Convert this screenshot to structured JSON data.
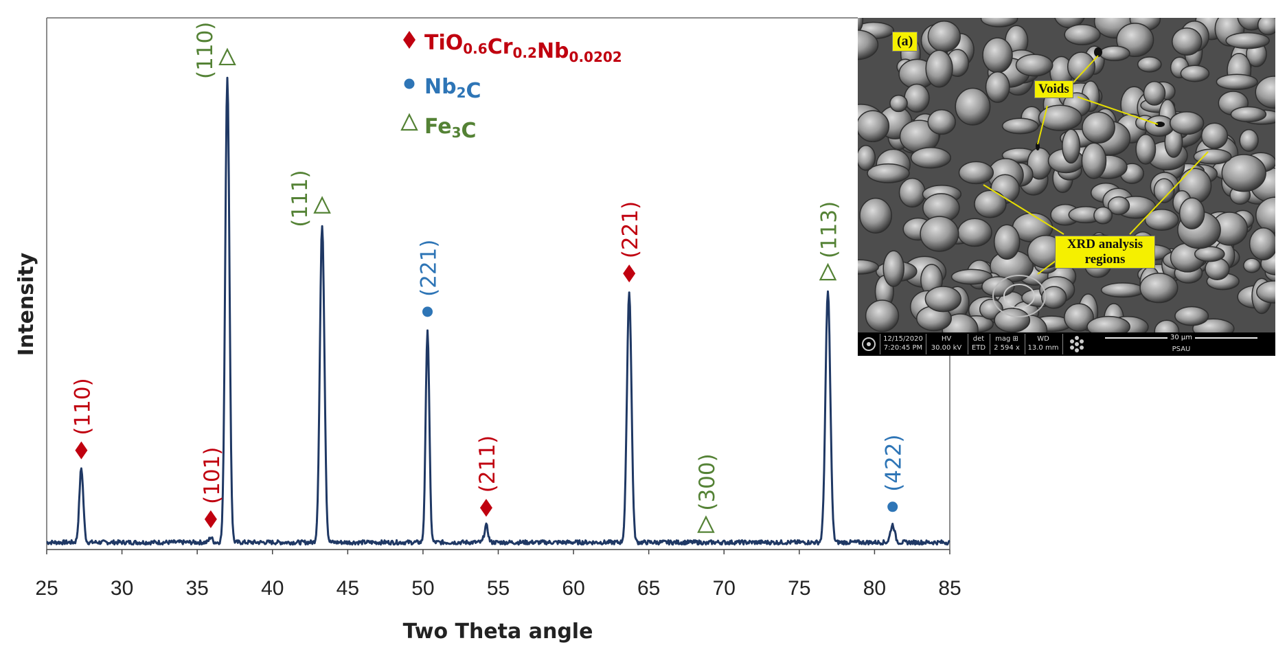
{
  "chart_data": {
    "type": "line",
    "xlabel": "Two Theta angle",
    "ylabel": "Intensity",
    "xlim": [
      25,
      85
    ],
    "ylim": [
      0,
      100
    ],
    "xticks": [
      "25",
      "30",
      "35",
      "40",
      "45",
      "50",
      "55",
      "60",
      "65",
      "70",
      "75",
      "80",
      "85"
    ],
    "grid": false,
    "legend_position": "top-center",
    "colors": {
      "line": "#1f3864",
      "red": "#c0000f",
      "blue": "#2e75b6",
      "green": "#548235"
    },
    "legend": [
      {
        "symbol": "diamond",
        "color": "#c0000f",
        "label_parts": [
          {
            "t": "TiO",
            "sub": false
          },
          {
            "t": "0.6",
            "sub": true
          },
          {
            "t": "Cr",
            "sub": false
          },
          {
            "t": "0.2",
            "sub": true
          },
          {
            "t": "Nb",
            "sub": false
          },
          {
            "t": "0.0202",
            "sub": true
          }
        ]
      },
      {
        "symbol": "circle",
        "color": "#2e75b6",
        "label_parts": [
          {
            "t": "Nb",
            "sub": false
          },
          {
            "t": "2",
            "sub": true
          },
          {
            "t": "C",
            "sub": false
          }
        ]
      },
      {
        "symbol": "triangle",
        "color": "#548235",
        "label_parts": [
          {
            "t": "Fe",
            "sub": false
          },
          {
            "t": "3",
            "sub": true
          },
          {
            "t": "C",
            "sub": false
          }
        ]
      }
    ],
    "series": [
      {
        "peaks": [
          {
            "x": 27.3,
            "y": 17.0,
            "w": 0.13,
            "label": "(110)",
            "phase": "TiO0.6Cr0.2Nb0.0202",
            "symbol": "diamond",
            "color": "#c0000f"
          },
          {
            "x": 35.9,
            "y": 2.6,
            "w": 0.1,
            "label": "(101)",
            "phase": "TiO0.6Cr0.2Nb0.0202",
            "symbol": "diamond",
            "color": "#c0000f"
          },
          {
            "x": 37.0,
            "y": 99.0,
            "w": 0.14,
            "label": "(110)",
            "phase": "Fe3C",
            "symbol": "triangle",
            "color": "#548235"
          },
          {
            "x": 43.3,
            "y": 68.0,
            "w": 0.15,
            "label": "(111)",
            "phase": "Fe3C",
            "symbol": "triangle",
            "color": "#548235"
          },
          {
            "x": 50.3,
            "y": 46.0,
            "w": 0.12,
            "label": "(221)",
            "phase": "Nb2C",
            "symbol": "circle",
            "color": "#2e75b6"
          },
          {
            "x": 54.2,
            "y": 5.0,
            "w": 0.12,
            "label": "(211)",
            "phase": "TiO0.6Cr0.2Nb0.0202",
            "symbol": "diamond",
            "color": "#c0000f"
          },
          {
            "x": 63.7,
            "y": 54.0,
            "w": 0.15,
            "label": "(221)",
            "phase": "TiO0.6Cr0.2Nb0.0202",
            "symbol": "diamond",
            "color": "#c0000f"
          },
          {
            "x": 68.8,
            "y": 1.2,
            "w": 0.1,
            "label": "(300)",
            "phase": "Fe3C",
            "symbol": "triangle",
            "color": "#548235"
          },
          {
            "x": 76.9,
            "y": 54.0,
            "w": 0.16,
            "label": "(113)",
            "phase": "Fe3C",
            "symbol": "triangle",
            "color": "#548235"
          },
          {
            "x": 81.2,
            "y": 5.2,
            "w": 0.14,
            "label": "(422)",
            "phase": "Nb2C",
            "symbol": "circle",
            "color": "#2e75b6"
          }
        ]
      }
    ]
  },
  "inset": {
    "panel_label": "(a)",
    "voids_label": "Voids",
    "xrd_label": "XRD analysis regions",
    "info_bar": {
      "date": "12/15/2020",
      "time": "7:20:45 PM",
      "hv_label": "HV",
      "hv": "30.00 kV",
      "det_label": "det",
      "det": "ETD",
      "mag_label": "mag ⊞",
      "mag": "2 594 x",
      "wd_label": "WD",
      "wd": "13.0 mm",
      "scale": "30 µm",
      "organization": "PSAU"
    }
  }
}
